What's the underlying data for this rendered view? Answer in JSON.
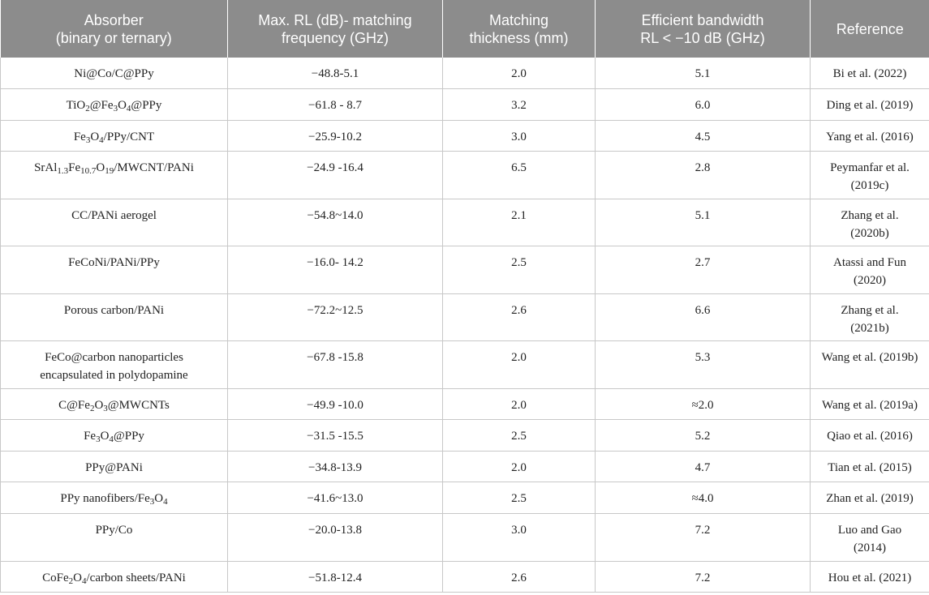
{
  "table": {
    "headers": [
      [
        "Absorber",
        "(binary or ternary)"
      ],
      [
        "Max. RL (dB)- matching",
        "frequency (GHz)"
      ],
      [
        "Matching",
        "thickness (mm)"
      ],
      [
        "Efficient bandwidth",
        "RL < −10 dB (GHz)"
      ],
      [
        "Reference"
      ]
    ],
    "rows": [
      {
        "absorber": [
          [
            "Ni@Co/C@PPy"
          ]
        ],
        "max_rl": "−48.8-5.1",
        "thickness": "2.0",
        "bandwidth": "5.1",
        "reference": [
          "Bi et al. (2022)"
        ]
      },
      {
        "absorber": [
          [
            "TiO",
            ""
          ],
          [
            "2",
            "sub"
          ],
          [
            "@Fe",
            ""
          ],
          [
            "3",
            "sub"
          ],
          [
            "O",
            ""
          ],
          [
            "4",
            "sub"
          ],
          [
            "@PPy",
            ""
          ]
        ],
        "max_rl": "−61.8 - 8.7",
        "thickness": "3.2",
        "bandwidth": "6.0",
        "reference": [
          "Ding et al. (2019)"
        ]
      },
      {
        "absorber": [
          [
            "Fe",
            ""
          ],
          [
            "3",
            "sub"
          ],
          [
            "O",
            ""
          ],
          [
            "4",
            "sub"
          ],
          [
            "/PPy/CNT",
            ""
          ]
        ],
        "max_rl": "−25.9-10.2",
        "thickness": "3.0",
        "bandwidth": "4.5",
        "reference": [
          "Yang et al. (2016)"
        ]
      },
      {
        "absorber": [
          [
            "SrAl",
            ""
          ],
          [
            "1.3",
            "sub"
          ],
          [
            "Fe",
            ""
          ],
          [
            "10.7",
            "sub"
          ],
          [
            "O",
            ""
          ],
          [
            "19",
            "sub"
          ],
          [
            "/MWCNT/PANi",
            ""
          ]
        ],
        "max_rl": "−24.9 -16.4",
        "thickness": "6.5",
        "bandwidth": "2.8",
        "reference": [
          "Peymanfar et al.",
          "(2019c)"
        ]
      },
      {
        "absorber": [
          [
            "CC/PANi aerogel"
          ]
        ],
        "max_rl": "−54.8~14.0",
        "thickness": "2.1",
        "bandwidth": "5.1",
        "reference": [
          "Zhang et al.",
          "(2020b)"
        ]
      },
      {
        "absorber": [
          [
            "FeCoNi/PANi/PPy"
          ]
        ],
        "max_rl": "−16.0- 14.2",
        "thickness": "2.5",
        "bandwidth": "2.7",
        "reference": [
          "Atassi and Fun",
          "(2020)"
        ]
      },
      {
        "absorber": [
          [
            "Porous carbon/PANi"
          ]
        ],
        "max_rl": "−72.2~12.5",
        "thickness": "2.6",
        "bandwidth": "6.6",
        "reference": [
          "Zhang et al.",
          "(2021b)"
        ]
      },
      {
        "absorber_lines": [
          "FeCo@carbon nanoparticles",
          "encapsulated in polydopamine"
        ],
        "max_rl": "−67.8 -15.8",
        "thickness": "2.0",
        "bandwidth": "5.3",
        "reference": [
          "Wang et al. (2019b)"
        ]
      },
      {
        "absorber": [
          [
            "C@Fe",
            ""
          ],
          [
            "2",
            "sub"
          ],
          [
            "O",
            ""
          ],
          [
            "3",
            "sub"
          ],
          [
            "@MWCNTs",
            ""
          ]
        ],
        "max_rl": "−49.9 -10.0",
        "thickness": "2.0",
        "bandwidth": "≈2.0",
        "reference": [
          "Wang et al. (2019a)"
        ]
      },
      {
        "absorber": [
          [
            "Fe",
            ""
          ],
          [
            "3",
            "sub"
          ],
          [
            "O",
            ""
          ],
          [
            "4",
            "sub"
          ],
          [
            "@PPy",
            ""
          ]
        ],
        "max_rl": "−31.5 -15.5",
        "thickness": "2.5",
        "bandwidth": "5.2",
        "reference": [
          "Qiao et al. (2016)"
        ]
      },
      {
        "absorber": [
          [
            "PPy@PANi"
          ]
        ],
        "max_rl": "−34.8-13.9",
        "thickness": "2.0",
        "bandwidth": "4.7",
        "reference": [
          "Tian et al. (2015)"
        ]
      },
      {
        "absorber": [
          [
            "PPy nanofibers/Fe",
            ""
          ],
          [
            "3",
            "sub"
          ],
          [
            "O",
            ""
          ],
          [
            "4",
            "sub"
          ]
        ],
        "max_rl": "−41.6~13.0",
        "thickness": "2.5",
        "bandwidth": "≈4.0",
        "reference": [
          "Zhan et al. (2019)"
        ]
      },
      {
        "absorber": [
          [
            "PPy/Co"
          ]
        ],
        "max_rl": "−20.0-13.8",
        "thickness": "3.0",
        "bandwidth": "7.2",
        "reference": [
          "Luo and Gao",
          "(2014)"
        ]
      },
      {
        "absorber": [
          [
            "CoFe",
            ""
          ],
          [
            "2",
            "sub"
          ],
          [
            "O",
            ""
          ],
          [
            "4",
            "sub"
          ],
          [
            "/carbon sheets/PANi",
            ""
          ]
        ],
        "max_rl": "−51.8-12.4",
        "thickness": "2.6",
        "bandwidth": "7.2",
        "reference": [
          "Hou et al. (2021)"
        ]
      }
    ]
  },
  "colors": {
    "header_bg": "#8c8c8c",
    "header_text": "#ffffff",
    "grid": "#c8c8c8"
  }
}
